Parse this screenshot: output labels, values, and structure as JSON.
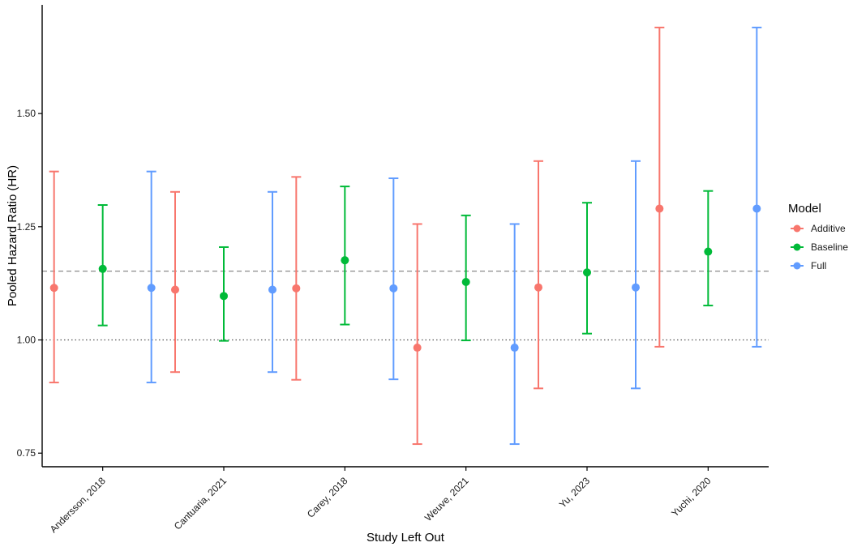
{
  "chart_data": {
    "type": "scatter",
    "subtype": "forest-plot-with-error-bars",
    "title": "",
    "xlabel": "Study Left Out",
    "ylabel": "Pooled Hazard Ratio (HR)",
    "ylim": [
      0.72,
      1.74
    ],
    "yticks": [
      0.75,
      1.0,
      1.25,
      1.5
    ],
    "ytick_labels": [
      "0.75",
      "1.00",
      "1.25",
      "1.50"
    ],
    "categories": [
      "Andersson, 2018",
      "Cantuaria, 2021",
      "Carey, 2018",
      "Weuve, 2021",
      "Yu, 2023",
      "Yuchi, 2020"
    ],
    "reference_lines": [
      {
        "value": 1.0,
        "style": "dotted"
      },
      {
        "value": 1.152,
        "style": "dashed"
      }
    ],
    "legend": {
      "title": "Model",
      "position": "right"
    },
    "series": [
      {
        "name": "Additive",
        "color": "#F8766D",
        "points": [
          {
            "est": 1.115,
            "lo": 0.906,
            "hi": 1.372
          },
          {
            "est": 1.111,
            "lo": 0.929,
            "hi": 1.327
          },
          {
            "est": 1.114,
            "lo": 0.912,
            "hi": 1.36
          },
          {
            "est": 0.983,
            "lo": 0.77,
            "hi": 1.256
          },
          {
            "est": 1.116,
            "lo": 0.893,
            "hi": 1.395
          },
          {
            "est": 1.29,
            "lo": 0.985,
            "hi": 1.69
          }
        ]
      },
      {
        "name": "Baseline",
        "color": "#00BA38",
        "points": [
          {
            "est": 1.157,
            "lo": 1.032,
            "hi": 1.298
          },
          {
            "est": 1.097,
            "lo": 0.998,
            "hi": 1.205
          },
          {
            "est": 1.176,
            "lo": 1.034,
            "hi": 1.339
          },
          {
            "est": 1.128,
            "lo": 0.999,
            "hi": 1.275
          },
          {
            "est": 1.149,
            "lo": 1.014,
            "hi": 1.303
          },
          {
            "est": 1.195,
            "lo": 1.076,
            "hi": 1.329
          }
        ]
      },
      {
        "name": "Full",
        "color": "#619CFF",
        "points": [
          {
            "est": 1.115,
            "lo": 0.906,
            "hi": 1.372
          },
          {
            "est": 1.111,
            "lo": 0.929,
            "hi": 1.327
          },
          {
            "est": 1.114,
            "lo": 0.913,
            "hi": 1.357
          },
          {
            "est": 0.983,
            "lo": 0.77,
            "hi": 1.256
          },
          {
            "est": 1.116,
            "lo": 0.893,
            "hi": 1.395
          },
          {
            "est": 1.29,
            "lo": 0.985,
            "hi": 1.69
          }
        ]
      }
    ]
  }
}
